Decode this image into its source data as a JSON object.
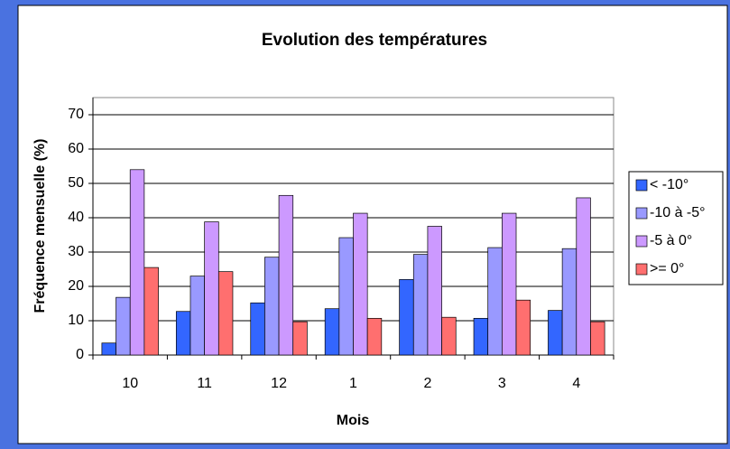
{
  "chart_data": {
    "type": "bar",
    "title": "Evolution des températures",
    "x_label": "Mois",
    "y_label": "Fréquence mensuelle (%)",
    "categories": [
      "10",
      "11",
      "12",
      "1",
      "2",
      "3",
      "4"
    ],
    "series": [
      {
        "name": "< -10°",
        "color": "#3366ff",
        "values": [
          3.5,
          12.7,
          15.2,
          13.5,
          22,
          10.7,
          13
        ]
      },
      {
        "name": "-10 à -5°",
        "color": "#9999ff",
        "values": [
          16.8,
          23,
          28.5,
          34.2,
          29.3,
          31.3,
          31
        ]
      },
      {
        "name": "-5 à 0°",
        "color": "#cc99ff",
        "values": [
          54,
          38.8,
          46.5,
          41.3,
          37.5,
          41.3,
          45.8
        ]
      },
      {
        "name": ">= 0°",
        "color": "#ff6f6f",
        "values": [
          25.5,
          24.3,
          9.7,
          10.7,
          11,
          16,
          9.7
        ]
      }
    ],
    "ylim": [
      0,
      75
    ],
    "yticks": [
      0,
      10,
      20,
      30,
      40,
      50,
      60,
      70
    ],
    "grid": true,
    "legend": "right"
  }
}
